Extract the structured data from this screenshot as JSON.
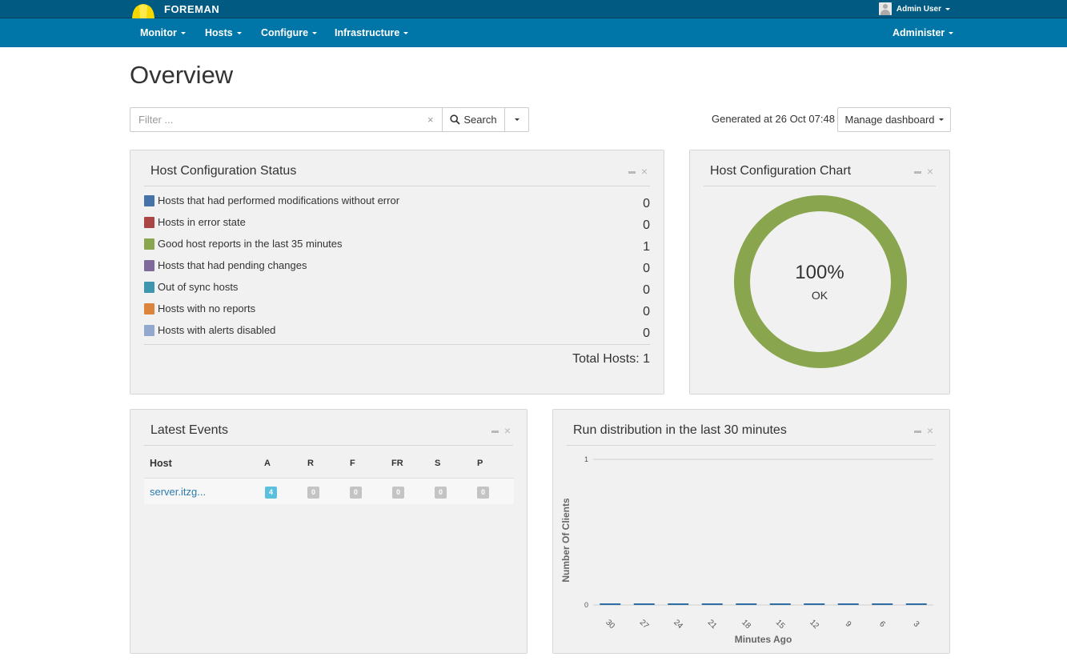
{
  "topbar": {
    "brand": "FOREMAN",
    "user_label": "Admin User"
  },
  "nav": {
    "items": [
      "Monitor",
      "Hosts",
      "Configure",
      "Infrastructure"
    ],
    "right": "Administer"
  },
  "page": {
    "title": "Overview",
    "filter_placeholder": "Filter ...",
    "search_label": "Search",
    "generated": "Generated at 26 Oct 07:48",
    "manage_label": "Manage dashboard"
  },
  "config_status": {
    "title": "Host Configuration Status",
    "rows": [
      {
        "label": "Hosts that had performed modifications without error",
        "count": "0",
        "color": "#4572a7"
      },
      {
        "label": "Hosts in error state",
        "count": "0",
        "color": "#aa4643"
      },
      {
        "label": "Good host reports in the last 35 minutes",
        "count": "1",
        "color": "#89a54e"
      },
      {
        "label": "Hosts that had pending changes",
        "count": "0",
        "color": "#80699b"
      },
      {
        "label": "Out of sync hosts",
        "count": "0",
        "color": "#3d96ae"
      },
      {
        "label": "Hosts with no reports",
        "count": "0",
        "color": "#db843d"
      },
      {
        "label": "Hosts with alerts disabled",
        "count": "0",
        "color": "#92a8cd"
      }
    ],
    "total": "Total Hosts: 1"
  },
  "config_chart": {
    "title": "Host Configuration Chart",
    "percent": "100%",
    "status": "OK",
    "color": "#89a54e"
  },
  "latest_events": {
    "title": "Latest Events",
    "columns": [
      "Host",
      "A",
      "R",
      "F",
      "FR",
      "S",
      "P"
    ],
    "rows": [
      {
        "host": "server.itzg...",
        "values": [
          "4",
          "0",
          "0",
          "0",
          "0",
          "0"
        ]
      }
    ]
  },
  "run_distribution": {
    "title": "Run distribution in the last 30 minutes"
  },
  "chart_data": {
    "type": "bar",
    "title": "Run distribution in the last 30 minutes",
    "xlabel": "Minutes Ago",
    "ylabel": "Number Of Clients",
    "categories": [
      "30",
      "27",
      "24",
      "21",
      "18",
      "15",
      "12",
      "9",
      "6",
      "3"
    ],
    "values": [
      0,
      0,
      0,
      0,
      0,
      0,
      0,
      0,
      0,
      0
    ],
    "yticks": [
      "0",
      "1"
    ],
    "ylim": [
      0,
      1
    ],
    "bar_color": "#2f6ea5",
    "grid": true
  }
}
